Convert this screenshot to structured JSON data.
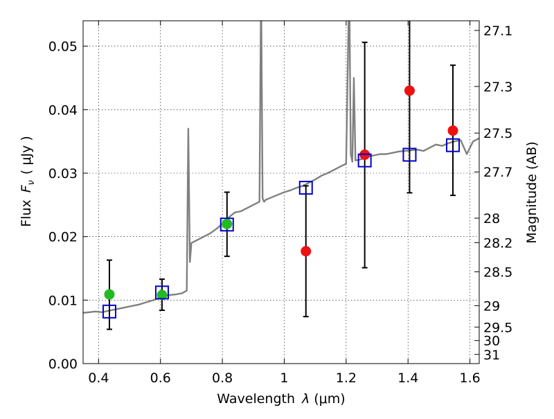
{
  "chart_data": {
    "type": "scatter",
    "title": "",
    "xlabel_prefix": "Wavelength",
    "xlabel_lambda": "λ",
    "xlabel_unit": "(μm)",
    "ylabel_prefix": "Flux",
    "ylabel_symbol": "F",
    "ylabel_sub": "ν",
    "ylabel_unit": "( μJy )",
    "y2label": "Magnitude (AB)",
    "xlim": [
      0.35,
      1.63
    ],
    "ylim": [
      0.0,
      0.054
    ],
    "grid": true,
    "x_ticks": [
      {
        "value": 0.4,
        "label": "0.4"
      },
      {
        "value": 0.6,
        "label": "0.6"
      },
      {
        "value": 0.8,
        "label": "0.8"
      },
      {
        "value": 1.0,
        "label": "1"
      },
      {
        "value": 1.2,
        "label": "1.2"
      },
      {
        "value": 1.4,
        "label": "1.4"
      },
      {
        "value": 1.6,
        "label": "1.6"
      }
    ],
    "y_ticks": [
      {
        "value": 0.0,
        "label": "0.00"
      },
      {
        "value": 0.01,
        "label": "0.01"
      },
      {
        "value": 0.02,
        "label": "0.02"
      },
      {
        "value": 0.03,
        "label": "0.03"
      },
      {
        "value": 0.04,
        "label": "0.04"
      },
      {
        "value": 0.05,
        "label": "0.05"
      }
    ],
    "y2_ticks": [
      {
        "value": 27.1,
        "label": "27.1"
      },
      {
        "value": 27.3,
        "label": "27.3"
      },
      {
        "value": 27.5,
        "label": "27.5"
      },
      {
        "value": 27.7,
        "label": "27.7"
      },
      {
        "value": 28.0,
        "label": "28"
      },
      {
        "value": 28.2,
        "label": "28.2"
      },
      {
        "value": 28.5,
        "label": "28.5"
      },
      {
        "value": 29.0,
        "label": "29"
      },
      {
        "value": 29.5,
        "label": "29.5"
      },
      {
        "value": 30.0,
        "label": "30"
      },
      {
        "value": 31.0,
        "label": "31"
      }
    ],
    "series": [
      {
        "kind": "model-spectrum-line",
        "color": "#808080",
        "x": [
          0.35,
          0.37,
          0.39,
          0.41,
          0.43,
          0.45,
          0.47,
          0.49,
          0.51,
          0.53,
          0.55,
          0.57,
          0.59,
          0.61,
          0.63,
          0.65,
          0.67,
          0.685,
          0.69,
          0.695,
          0.7,
          0.72,
          0.74,
          0.76,
          0.78,
          0.8,
          0.82,
          0.84,
          0.86,
          0.88,
          0.9,
          0.92,
          0.925,
          0.93,
          0.935,
          0.94,
          0.96,
          0.98,
          1.0,
          1.02,
          1.04,
          1.06,
          1.08,
          1.1,
          1.12,
          1.14,
          1.16,
          1.18,
          1.2,
          1.21,
          1.215,
          1.22,
          1.225,
          1.23,
          1.25,
          1.27,
          1.29,
          1.31,
          1.33,
          1.35,
          1.37,
          1.39,
          1.41,
          1.43,
          1.45,
          1.47,
          1.49,
          1.51,
          1.53,
          1.55,
          1.57,
          1.59,
          1.61,
          1.63
        ],
        "y": [
          0.008,
          0.0081,
          0.0082,
          0.0081,
          0.0083,
          0.0085,
          0.0087,
          0.0089,
          0.0091,
          0.0093,
          0.0096,
          0.0099,
          0.0102,
          0.0106,
          0.0108,
          0.0109,
          0.0111,
          0.0115,
          0.037,
          0.016,
          0.019,
          0.0195,
          0.02,
          0.0205,
          0.0212,
          0.022,
          0.023,
          0.0238,
          0.024,
          0.0245,
          0.025,
          0.0255,
          0.06,
          0.026,
          0.0255,
          0.0258,
          0.0262,
          0.0266,
          0.027,
          0.0273,
          0.0277,
          0.028,
          0.0285,
          0.029,
          0.0296,
          0.03,
          0.0305,
          0.031,
          0.0315,
          0.06,
          0.033,
          0.0318,
          0.045,
          0.032,
          0.0322,
          0.0326,
          0.0328,
          0.033,
          0.033,
          0.0332,
          0.0334,
          0.0335,
          0.0336,
          0.0337,
          0.0335,
          0.034,
          0.0345,
          0.0343,
          0.0347,
          0.035,
          0.0352,
          0.033,
          0.035,
          0.0355
        ]
      },
      {
        "kind": "model-bandpass-squares",
        "color": "#0000cc",
        "x": [
          0.435,
          0.605,
          0.815,
          1.07,
          1.26,
          1.405,
          1.545
        ],
        "y": [
          0.0082,
          0.0112,
          0.0219,
          0.0277,
          0.032,
          0.0329,
          0.0344
        ]
      },
      {
        "kind": "detections",
        "color": "#22bb22",
        "x": [
          0.435,
          0.605,
          0.815
        ],
        "y": [
          0.0109,
          0.0108,
          0.022
        ],
        "err_low": [
          0.0054,
          0.0084,
          0.0169
        ],
        "err_high": [
          0.0163,
          0.0133,
          0.027
        ]
      },
      {
        "kind": "non-detections",
        "color": "#ee1111",
        "x": [
          1.07,
          1.26,
          1.405,
          1.545
        ],
        "y": [
          0.0177,
          0.0329,
          0.043,
          0.0367
        ],
        "err_low": [
          0.0074,
          0.0151,
          0.0269,
          0.0265
        ],
        "err_high": [
          0.028,
          0.0506,
          0.056,
          0.047
        ]
      }
    ]
  }
}
